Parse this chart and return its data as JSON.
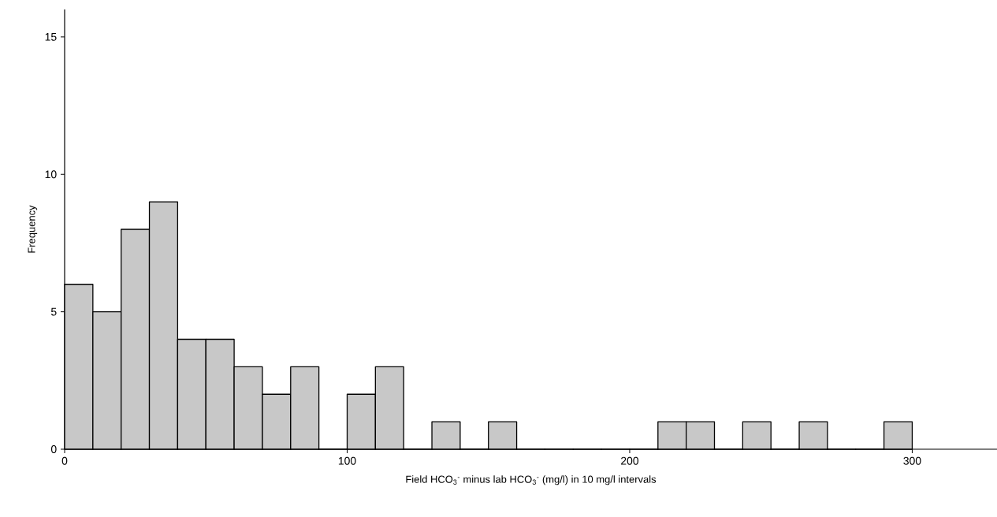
{
  "chart_data": {
    "type": "histogram",
    "bins": [
      0,
      10,
      20,
      30,
      40,
      50,
      60,
      70,
      80,
      90,
      100,
      110,
      120,
      130,
      140,
      150,
      160,
      170,
      180,
      190,
      200,
      210,
      220,
      230,
      240,
      250,
      260,
      270,
      280,
      290,
      300
    ],
    "values": [
      6,
      5,
      8,
      9,
      4,
      4,
      3,
      2,
      3,
      0,
      2,
      3,
      0,
      1,
      0,
      1,
      0,
      0,
      0,
      0,
      0,
      1,
      1,
      0,
      1,
      0,
      1,
      0,
      0,
      1
    ],
    "color": "#c8c8c8",
    "xlabel": "Field HCO$_{3}$$^{-}$ minus lab HCO$_{3}$$^{-}$ (mg/l) in 10 mg/l intervals",
    "ylabel": "Frequency",
    "xlim": [
      0,
      330
    ],
    "ylim": [
      0,
      16
    ],
    "xticks": [
      0,
      100,
      200,
      300
    ],
    "yticks": [
      0,
      5,
      10,
      15
    ],
    "grid": false
  }
}
